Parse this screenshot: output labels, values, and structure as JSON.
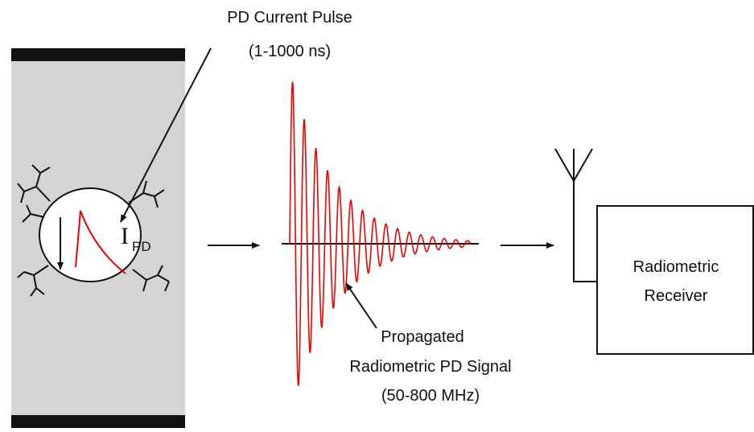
{
  "pulse_label": {
    "line1": "PD Current Pulse",
    "line2": "(1-1000 ns)"
  },
  "current_symbol": {
    "main": "I",
    "subscript": "PD"
  },
  "signal_label": {
    "line1": "Propagated",
    "line2": "Radiometric PD Signal",
    "line3": "(50-800 MHz)"
  },
  "receiver": {
    "line1": "Radiometric",
    "line2": "Receiver"
  }
}
